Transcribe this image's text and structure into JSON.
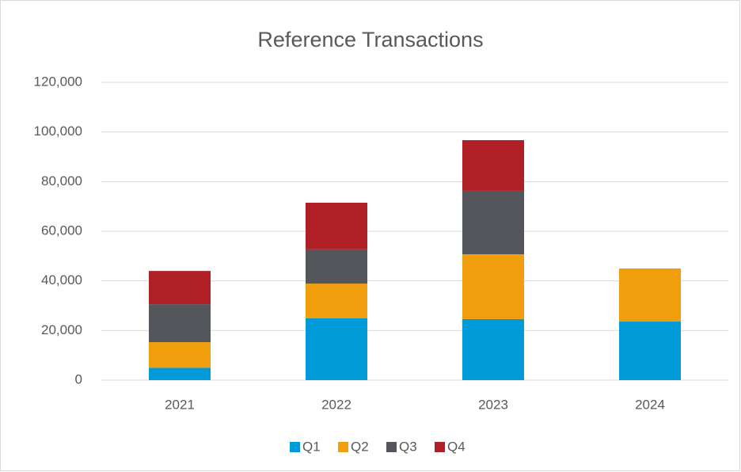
{
  "chart_data": {
    "type": "stacked_bar",
    "title": "Reference Transactions",
    "categories": [
      "2021",
      "2022",
      "2023",
      "2024"
    ],
    "series": [
      {
        "name": "Q1",
        "color": "#009ad9",
        "values": [
          5000,
          24900,
          24600,
          23600
        ]
      },
      {
        "name": "Q2",
        "color": "#f19e0c",
        "values": [
          10300,
          14000,
          26100,
          21400
        ]
      },
      {
        "name": "Q3",
        "color": "#53565a",
        "values": [
          15300,
          13800,
          25600,
          null
        ]
      },
      {
        "name": "Q4",
        "color": "#b01f26",
        "values": [
          13400,
          18800,
          20400,
          null
        ]
      }
    ],
    "ylim": [
      0,
      120000
    ],
    "yticks": [
      0,
      {
        "value": 20000,
        "label": "20,000"
      },
      {
        "value": 40000,
        "label": "40,000"
      },
      {
        "value": 60000,
        "label": "60,000"
      },
      {
        "value": 80000,
        "label": "80,000"
      },
      {
        "value": 100000,
        "label": "100,000"
      },
      {
        "value": 120000,
        "label": "120,000"
      }
    ],
    "grid": true,
    "legend": "bottom"
  }
}
